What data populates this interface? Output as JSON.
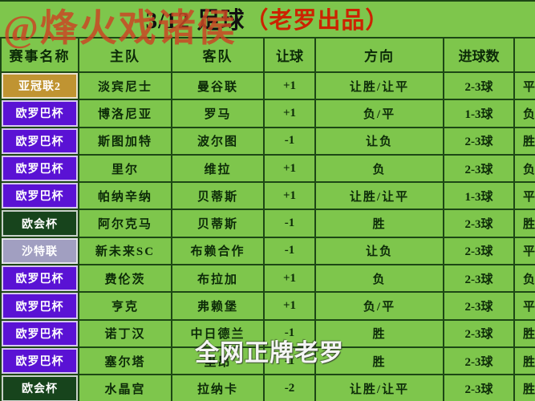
{
  "title": {
    "date_part": "3/12 足球",
    "brand_part": "（老罗出品）"
  },
  "watermarks": {
    "handle": "@烽火戏诸侯",
    "center": "全网正牌老罗"
  },
  "colors": {
    "cell_green": "#7ec64c",
    "grid": "#1d4715",
    "title_red": "#cc2200",
    "watermark_red": "#c94624",
    "gold": "#c09432",
    "purple": "#5a12d4",
    "dark_green": "#17441c",
    "lavender": "#a19fc1"
  },
  "table": {
    "headers": [
      "赛事名称",
      "主队",
      "客队",
      "让球",
      "方向",
      "进球数",
      ""
    ],
    "rows": [
      {
        "league": "亚冠联2",
        "league_color": "gold",
        "home": "淡宾尼士",
        "away": "曼谷联",
        "handicap": "+1",
        "direction": "让胜/让平",
        "goals": "2-3球",
        "extra": "平"
      },
      {
        "league": "欧罗巴杯",
        "league_color": "purple",
        "home": "博洛尼亚",
        "away": "罗马",
        "handicap": "+1",
        "direction": "负/平",
        "goals": "1-3球",
        "extra": "负"
      },
      {
        "league": "欧罗巴杯",
        "league_color": "purple",
        "home": "斯图加特",
        "away": "波尔图",
        "handicap": "-1",
        "direction": "让负",
        "goals": "2-3球",
        "extra": "胜"
      },
      {
        "league": "欧罗巴杯",
        "league_color": "purple",
        "home": "里尔",
        "away": "维拉",
        "handicap": "+1",
        "direction": "负",
        "goals": "2-3球",
        "extra": "负"
      },
      {
        "league": "欧罗巴杯",
        "league_color": "purple",
        "home": "帕纳辛纳",
        "away": "贝蒂斯",
        "handicap": "+1",
        "direction": "让胜/让平",
        "goals": "1-3球",
        "extra": "平"
      },
      {
        "league": "欧会杯",
        "league_color": "dark_green",
        "home": "阿尔克马",
        "away": "贝蒂斯",
        "handicap": "-1",
        "direction": "胜",
        "goals": "2-3球",
        "extra": "胜"
      },
      {
        "league": "沙特联",
        "league_color": "lavender",
        "home": "新未来SC",
        "away": "布赖合作",
        "handicap": "-1",
        "direction": "让负",
        "goals": "2-3球",
        "extra": "平"
      },
      {
        "league": "欧罗巴杯",
        "league_color": "purple",
        "home": "费伦茨",
        "away": "布拉加",
        "handicap": "+1",
        "direction": "负",
        "goals": "2-3球",
        "extra": "负"
      },
      {
        "league": "欧罗巴杯",
        "league_color": "purple",
        "home": "亨克",
        "away": "弗赖堡",
        "handicap": "+1",
        "direction": "负/平",
        "goals": "2-3球",
        "extra": "平"
      },
      {
        "league": "欧罗巴杯",
        "league_color": "purple",
        "home": "诺丁汉",
        "away": "中日德兰",
        "handicap": "-1",
        "direction": "胜",
        "goals": "2-3球",
        "extra": "胜"
      },
      {
        "league": "欧罗巴杯",
        "league_color": "purple",
        "home": "塞尔塔",
        "away": "里昂",
        "handicap": "-1",
        "direction": "胜",
        "goals": "2-3球",
        "extra": "胜"
      },
      {
        "league": "欧会杯",
        "league_color": "dark_green",
        "home": "水晶宫",
        "away": "拉纳卡",
        "handicap": "-2",
        "direction": "让胜/让平",
        "goals": "2-3球",
        "extra": "胜"
      }
    ]
  }
}
